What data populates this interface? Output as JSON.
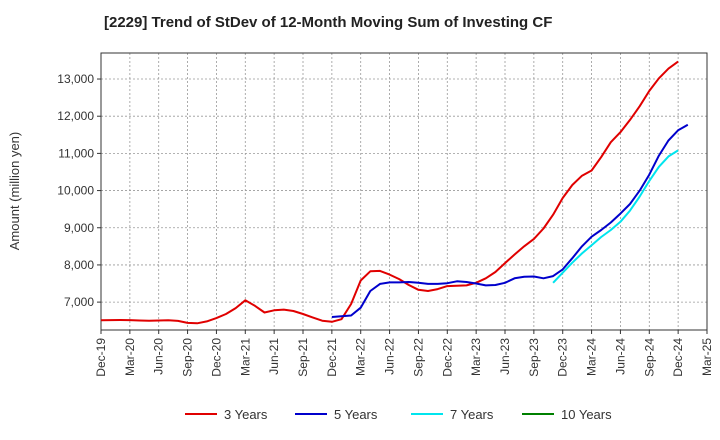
{
  "chart_data": {
    "type": "line",
    "title": "[2229]  Trend of StDev of 12-Month Moving Sum of Investing CF",
    "xlabel": "",
    "ylabel": "Amount (million yen)",
    "ylim": [
      6250,
      13700
    ],
    "yticks": [
      7000,
      8000,
      9000,
      10000,
      11000,
      12000,
      13000
    ],
    "ytick_labels": [
      "7,000",
      "8,000",
      "9,000",
      "10,000",
      "11,000",
      "12,000",
      "13,000"
    ],
    "x_range": [
      "2019-12",
      "2025-03"
    ],
    "xtick_labels": [
      "Dec-19",
      "Mar-20",
      "Jun-20",
      "Sep-20",
      "Dec-20",
      "Mar-21",
      "Jun-21",
      "Sep-21",
      "Dec-21",
      "Mar-22",
      "Jun-22",
      "Sep-22",
      "Dec-22",
      "Mar-23",
      "Jun-23",
      "Sep-23",
      "Dec-23",
      "Mar-24",
      "Jun-24",
      "Sep-24",
      "Dec-24",
      "Mar-25"
    ],
    "grid": true,
    "legend_position": "bottom",
    "series": [
      {
        "name": "3 Years",
        "color": "#e00000",
        "start": "2019-12",
        "values": [
          6510,
          6515,
          6520,
          6515,
          6505,
          6500,
          6505,
          6510,
          6495,
          6440,
          6430,
          6480,
          6570,
          6680,
          6840,
          7050,
          6900,
          6720,
          6780,
          6800,
          6760,
          6680,
          6590,
          6500,
          6470,
          6540,
          6950,
          7580,
          7830,
          7840,
          7740,
          7620,
          7460,
          7330,
          7300,
          7350,
          7430,
          7440,
          7450,
          7520,
          7640,
          7810,
          8050,
          8280,
          8500,
          8700,
          8980,
          9350,
          9800,
          10150,
          10400,
          10540,
          10900,
          11300,
          11570,
          11900,
          12270,
          12680,
          13020,
          13280,
          13470
        ]
      },
      {
        "name": "5 Years",
        "color": "#0000cc",
        "start": "2021-12",
        "values": [
          6600,
          6620,
          6640,
          6850,
          7300,
          7490,
          7530,
          7530,
          7540,
          7520,
          7490,
          7490,
          7510,
          7560,
          7540,
          7500,
          7450,
          7460,
          7520,
          7640,
          7680,
          7690,
          7640,
          7700,
          7880,
          8180,
          8500,
          8760,
          8940,
          9140,
          9380,
          9640,
          10000,
          10430,
          10940,
          11350,
          11620,
          11770
        ]
      },
      {
        "name": "7 Years",
        "color": "#00e5ee",
        "start": "2023-11",
        "values": [
          7520,
          7790,
          8060,
          8310,
          8530,
          8750,
          8940,
          9160,
          9460,
          9840,
          10260,
          10640,
          10920,
          11080
        ]
      },
      {
        "name": "10 Years",
        "color": "#008000",
        "start": "2024-12",
        "values": []
      }
    ]
  }
}
